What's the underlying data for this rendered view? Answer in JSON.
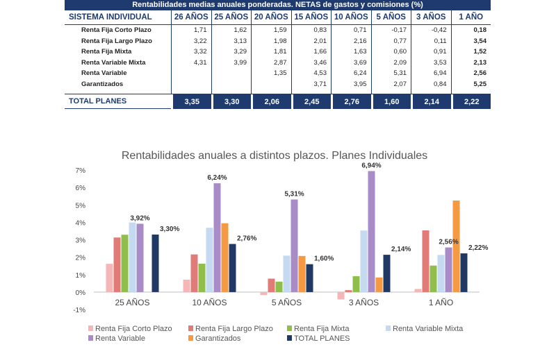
{
  "table": {
    "title": "Rentabilidades medias anuales ponderadas. NETAS de gastos y comisiones (%)",
    "columns": [
      "SISTEMA INDIVIDUAL",
      "26 AÑOS",
      "25 AÑOS",
      "20 AÑOS",
      "15 AÑOS",
      "10 AÑOS",
      "5 AÑOS",
      "3 AÑOS",
      "1 AÑO"
    ],
    "rows": [
      {
        "label": "Renta Fija Corto Plazo",
        "values": [
          "1,71",
          "1,62",
          "1,59",
          "0,83",
          "0,71",
          "-0,17",
          "-0,42",
          "0,18"
        ]
      },
      {
        "label": "Renta Fija Largo Plazo",
        "values": [
          "3,22",
          "3,13",
          "1,98",
          "2,01",
          "2,16",
          "0,77",
          "0,11",
          "3,54"
        ]
      },
      {
        "label": "Renta Fija Mixta",
        "values": [
          "3,32",
          "3,29",
          "1,81",
          "1,66",
          "1,63",
          "0,60",
          "0,91",
          "1,52"
        ]
      },
      {
        "label": "Renta Variable Mixta",
        "values": [
          "4,31",
          "3,99",
          "2,87",
          "3,46",
          "3,69",
          "2,09",
          "3,53",
          "2,13"
        ]
      },
      {
        "label": "Renta Variable",
        "values": [
          "",
          "",
          "1,35",
          "4,53",
          "6,24",
          "5,31",
          "6,94",
          "2,56"
        ]
      },
      {
        "label": "Garantizados",
        "values": [
          "",
          "",
          "",
          "3,71",
          "3,95",
          "2,07",
          "0,84",
          "5,25"
        ]
      }
    ],
    "total": {
      "label": "TOTAL PLANES",
      "values": [
        "3,35",
        "3,30",
        "2,06",
        "2,45",
        "2,76",
        "1,60",
        "2,14",
        "2,22"
      ]
    }
  },
  "chart_data": {
    "type": "bar",
    "title": "Rentabilidades anuales a distintos plazos. Planes Individuales",
    "categories": [
      "25 AÑOS",
      "10 AÑOS",
      "5 AÑOS",
      "3 AÑOS",
      "1 AÑO"
    ],
    "ylim": [
      -1,
      7
    ],
    "yticks": [
      "-1%",
      "0%",
      "1%",
      "2%",
      "3%",
      "4%",
      "5%",
      "6%",
      "7%"
    ],
    "grid": false,
    "legend": "bottom",
    "series": [
      {
        "name": "Renta Fija Corto Plazo",
        "color": "#f4b6b6",
        "values": [
          1.62,
          0.71,
          -0.17,
          -0.42,
          0.18
        ]
      },
      {
        "name": "Renta Fija Largo Plazo",
        "color": "#e07b78",
        "values": [
          3.13,
          2.16,
          0.77,
          0.11,
          3.54
        ]
      },
      {
        "name": "Renta Fija Mixta",
        "color": "#8fbf4a",
        "values": [
          3.29,
          1.63,
          0.6,
          0.91,
          1.52
        ]
      },
      {
        "name": "Renta Variable Mixta",
        "color": "#c5d9f1",
        "values": [
          3.99,
          3.69,
          2.09,
          3.53,
          2.13
        ]
      },
      {
        "name": "Renta Variable",
        "color": "#a88bc7",
        "values": [
          3.92,
          6.24,
          5.31,
          6.94,
          2.56
        ]
      },
      {
        "name": "Garantizados",
        "color": "#f59a42",
        "values": [
          null,
          3.95,
          2.07,
          0.84,
          5.25
        ]
      },
      {
        "name": "TOTAL PLANES",
        "color": "#1f3864",
        "values": [
          3.3,
          2.76,
          1.6,
          2.14,
          2.22
        ]
      }
    ],
    "data_labels": [
      {
        "series": 4,
        "category": 0,
        "text": "3,92%"
      },
      {
        "series": 6,
        "category": 0,
        "text": "3,30%"
      },
      {
        "series": 4,
        "category": 1,
        "text": "6,24%"
      },
      {
        "series": 6,
        "category": 1,
        "text": "2,76%"
      },
      {
        "series": 4,
        "category": 2,
        "text": "5,31%"
      },
      {
        "series": 6,
        "category": 2,
        "text": "1,60%"
      },
      {
        "series": 4,
        "category": 3,
        "text": "6,94%"
      },
      {
        "series": 6,
        "category": 3,
        "text": "2,14%"
      },
      {
        "series": 4,
        "category": 4,
        "text": "2,56%"
      },
      {
        "series": 6,
        "category": 4,
        "text": "2,22%"
      }
    ]
  }
}
